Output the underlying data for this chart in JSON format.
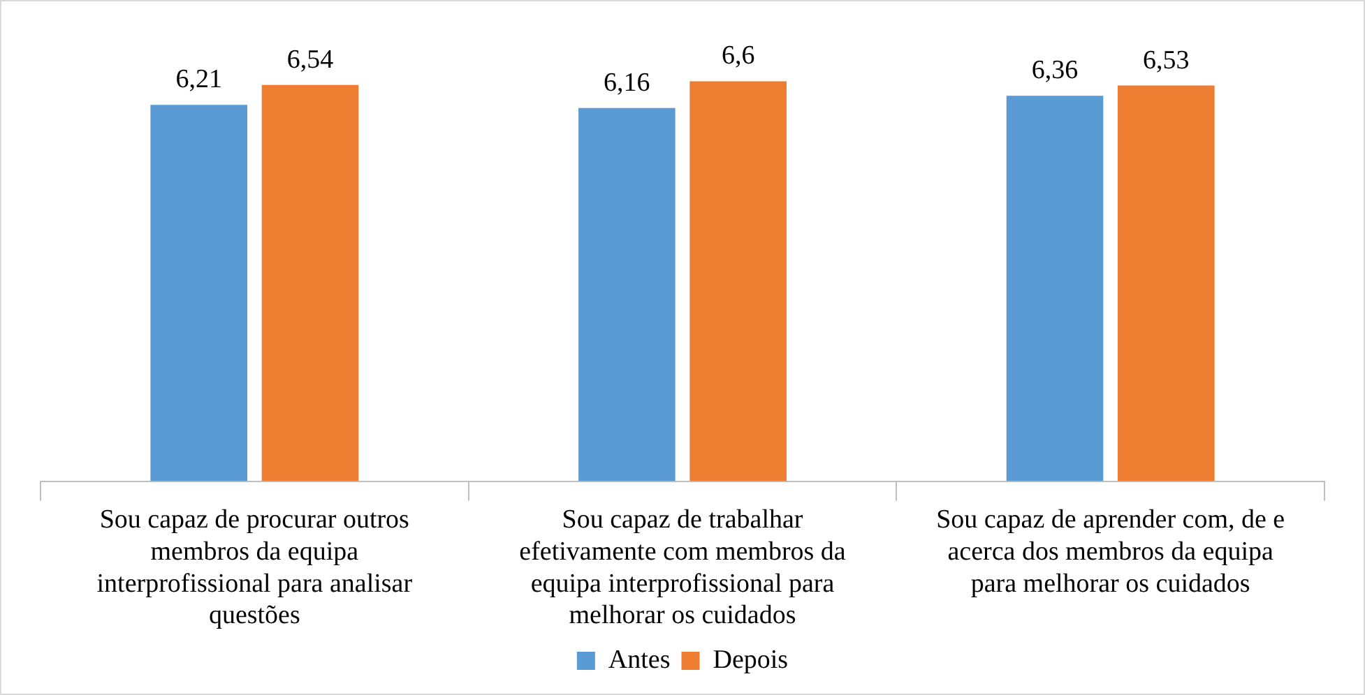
{
  "chart_data": {
    "type": "bar",
    "categories": [
      "Sou capaz de procurar outros membros da equipa interprofissional para analisar questões",
      "Sou capaz de trabalhar efetivamente com membros da equipa interprofissional para melhorar os cuidados",
      "Sou capaz de aprender com, de e acerca dos membros da equipa para melhorar os cuidados"
    ],
    "series": [
      {
        "name": "Antes",
        "color": "#5b9bd5",
        "values": [
          6.21,
          6.16,
          6.36
        ],
        "value_labels": [
          "6,21",
          "6,16",
          "6,36"
        ]
      },
      {
        "name": "Depois",
        "color": "#ed7d31",
        "values": [
          6.54,
          6.6,
          6.53
        ],
        "value_labels": [
          "6,54",
          "6,6",
          "6,53"
        ]
      }
    ],
    "legend": "bottom"
  }
}
